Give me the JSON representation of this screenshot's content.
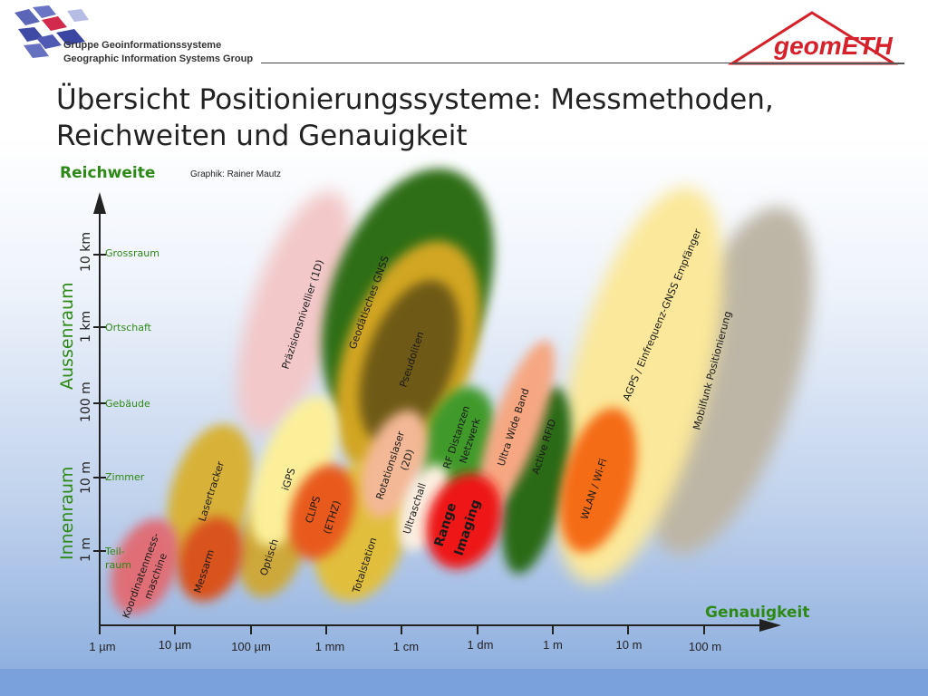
{
  "header": {
    "group_de": "Gruppe Geoinformationssysteme",
    "group_en": "Geographic Information Systems Group",
    "brand": "geomETH"
  },
  "title": {
    "line1": "Übersicht Positionierungssysteme: Messmethoden,",
    "line2": "Reichweiten und Genauigkeit"
  },
  "diagram": {
    "y_axis_title": "Reichweite",
    "x_axis_title": "Genauigkeit",
    "credit": "Graphik: Rainer Mautz",
    "region_outdoor": "Aussenraum",
    "region_indoor": "Innenraum",
    "y_levels": [
      {
        "value": "10 km",
        "label": "Grossraum"
      },
      {
        "value": "1 km",
        "label": "Ortschaft"
      },
      {
        "value": "100 m",
        "label": "Gebäude"
      },
      {
        "value": "10 m",
        "label": "Zimmer"
      },
      {
        "value": "1 m",
        "label": "Teil-"
      }
    ],
    "y_level_label_extra": "raum",
    "x_ticks": [
      "1 µm",
      "10 µm",
      "100 µm",
      "1 mm",
      "1 cm",
      "1 dm",
      "1 m",
      "10 m",
      "100 m"
    ],
    "systems": [
      {
        "label": "Präzisionsnivellier (1D)",
        "color": "#f3c8c8"
      },
      {
        "label": "Geodätisches GNSS",
        "color": "#2f6e12"
      },
      {
        "label": "Pseudoliten",
        "color": "#6e5a12"
      },
      {
        "label": "Lasertracker",
        "color": "#d8b238"
      },
      {
        "label": "iGPS",
        "color": "#fbef9a"
      },
      {
        "label": "Rotationslaser",
        "sub": "(2D)",
        "color": "#f3b896"
      },
      {
        "label": "RF Distanzen",
        "sub": "Netzwerk",
        "color": "#3f9a2a"
      },
      {
        "label": "Ultra Wide Band",
        "color": "#f6a781"
      },
      {
        "label": "Active RFID",
        "color": "#2c6a18"
      },
      {
        "label": "AGPS / Einfrequenz-GNSS Empfänger",
        "color": "#fbe89a"
      },
      {
        "label": "Mobilfunk Positionierung",
        "color": "#bdb6a6"
      },
      {
        "label": "WLAN / Wi-Fi",
        "color": "#f56c14"
      },
      {
        "label": "Koordinatenmess-",
        "sub": "maschine",
        "color": "#df6e77"
      },
      {
        "label": "Messarm",
        "color": "#d9521a"
      },
      {
        "label": "Optisch",
        "color": "#cda83a"
      },
      {
        "label": "CLIPS",
        "sub": "(ETHZ)",
        "color": "#e85a1c"
      },
      {
        "label": "Totalstation",
        "color": "#e1bf3e"
      },
      {
        "label": "Ultraschall",
        "color": "#fbeee0"
      },
      {
        "label": "Range",
        "sub": "Imaging",
        "color": "#ee1515"
      }
    ]
  }
}
